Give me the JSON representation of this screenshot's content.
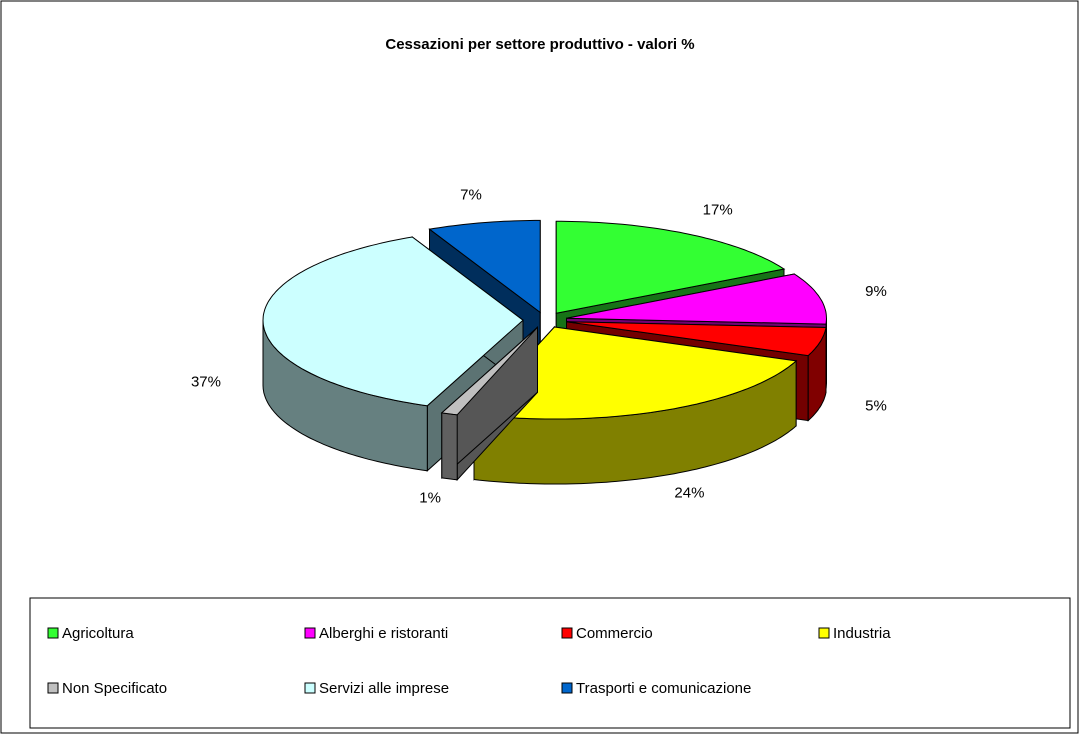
{
  "chart_data": {
    "type": "pie3d",
    "title": "Cessazioni per settore produttivo - valori %",
    "categories": [
      "Agricoltura",
      "Alberghi e ristoranti",
      "Commercio",
      "Industria",
      "Non Specificato",
      "Servizi alle imprese",
      "Trasporti e comunicazione"
    ],
    "values": [
      17,
      9,
      5,
      24,
      1,
      37,
      7
    ],
    "value_labels": [
      "17%",
      "9%",
      "5%",
      "24%",
      "1%",
      "37%",
      "7%"
    ],
    "colors": [
      "#33ff33",
      "#ff00ff",
      "#ff0000",
      "#ffff00",
      "#c0c0c0",
      "#ccffff",
      "#0066cc"
    ],
    "legend": "bottom"
  }
}
